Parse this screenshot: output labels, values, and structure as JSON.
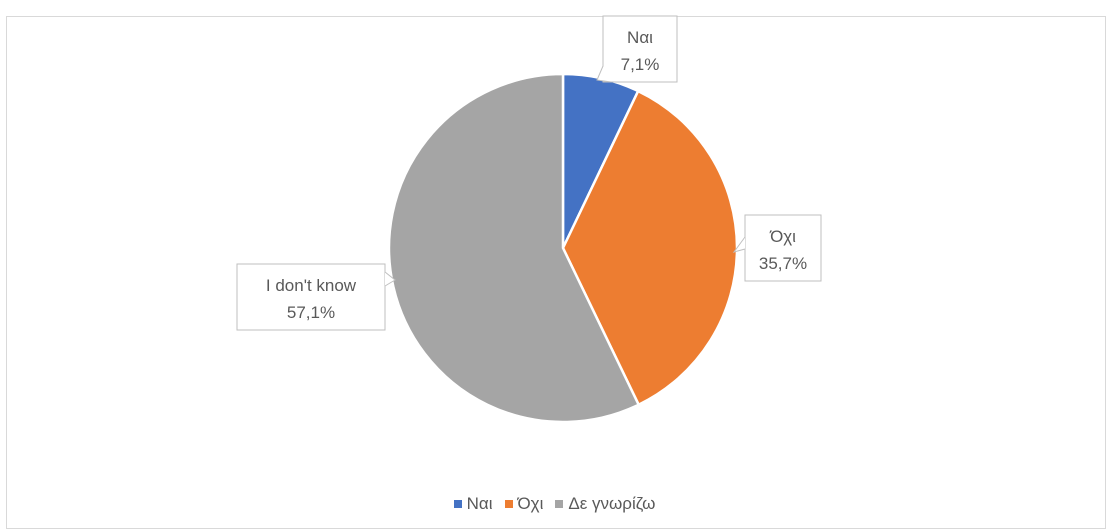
{
  "chart_data": {
    "type": "pie",
    "categories": [
      "Ναι",
      "Όχι",
      "Δε γνωρίζω"
    ],
    "values": [
      7.1,
      35.7,
      57.1
    ],
    "colors": [
      "#4472c4",
      "#ed7d31",
      "#a5a5a5"
    ],
    "data_labels": [
      {
        "category": "Ναι",
        "value": "7,1%"
      },
      {
        "category": "Όχι",
        "value": "35,7%"
      },
      {
        "category": "I don't know",
        "value": "57,1%"
      }
    ],
    "legend_position": "bottom",
    "start_angle": "top, clockwise"
  }
}
